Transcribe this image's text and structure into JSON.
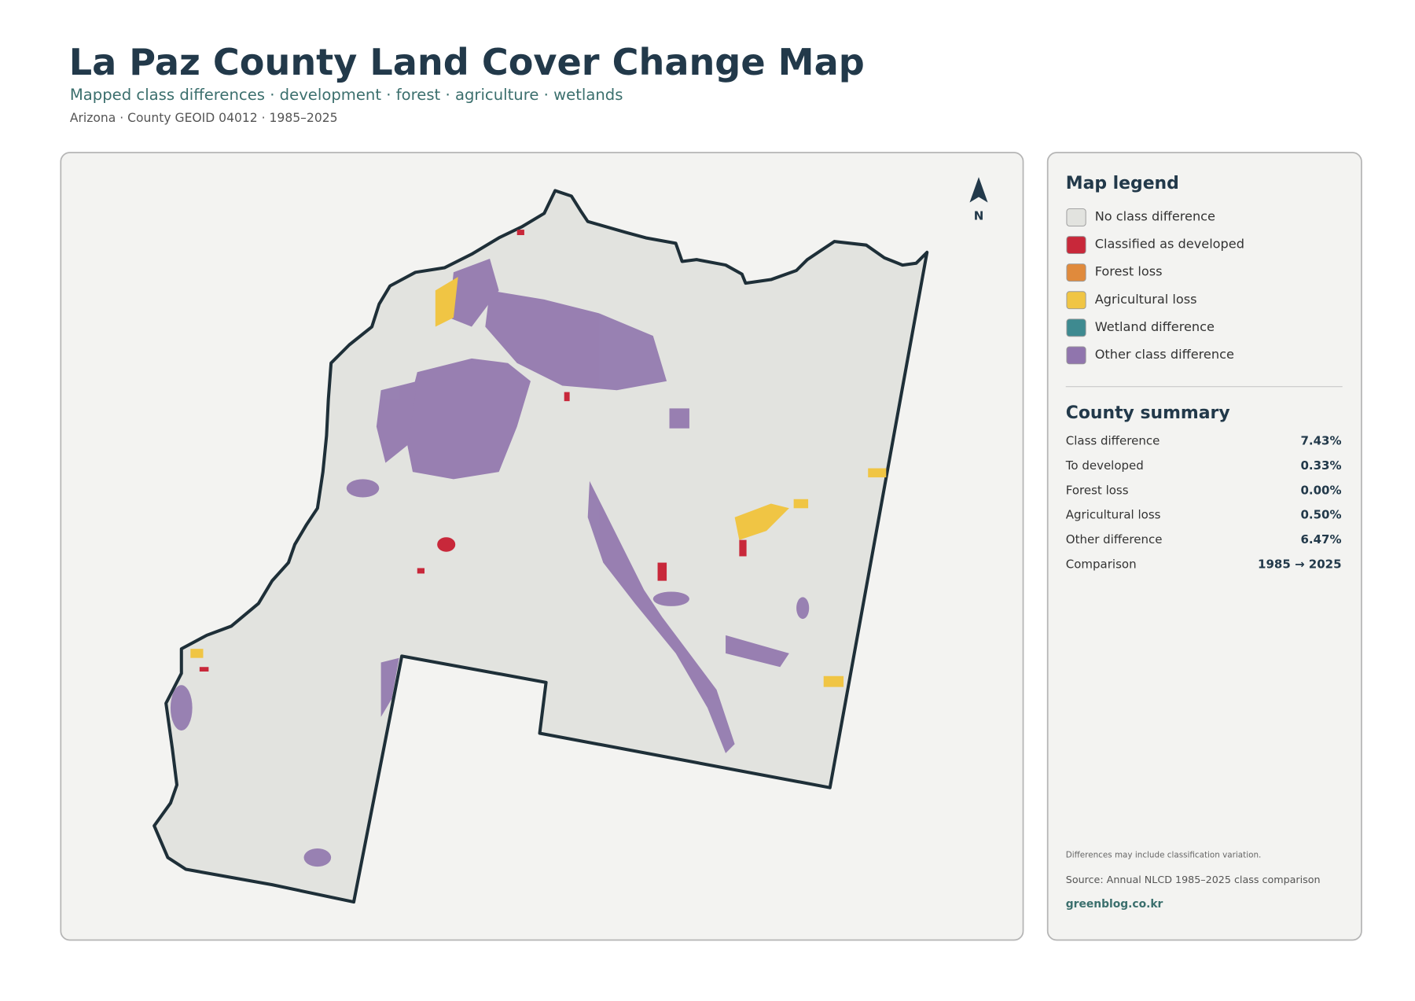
{
  "header": {
    "title": "La Paz County Land Cover Change Map",
    "subtitle": "Mapped class differences · development · forest · agriculture · wetlands",
    "meta": "Arizona · County GEOID 04012 · 1985–2025"
  },
  "north": "N",
  "legend": {
    "title": "Map legend",
    "items": [
      {
        "label": "No class difference",
        "color": "#e2e3df"
      },
      {
        "label": "Classified as developed",
        "color": "#c8283a"
      },
      {
        "label": "Forest loss",
        "color": "#e08a3c"
      },
      {
        "label": "Agricultural loss",
        "color": "#f0c544"
      },
      {
        "label": "Wetland difference",
        "color": "#3e8a90"
      },
      {
        "label": "Other class difference",
        "color": "#9075ad"
      }
    ]
  },
  "summary": {
    "title": "County summary",
    "rows": [
      [
        "Class difference",
        "7.43%"
      ],
      [
        "To developed",
        "0.33%"
      ],
      [
        "Forest loss",
        "0.00%"
      ],
      [
        "Agricultural loss",
        "0.50%"
      ],
      [
        "Other difference",
        "6.47%"
      ],
      [
        "Comparison",
        "1985 → 2025"
      ]
    ]
  },
  "footer": {
    "note": "Differences may include classification variation.",
    "source": "Source: Annual NLCD 1985–2025 class comparison",
    "credit": "greenblog.co.kr"
  }
}
